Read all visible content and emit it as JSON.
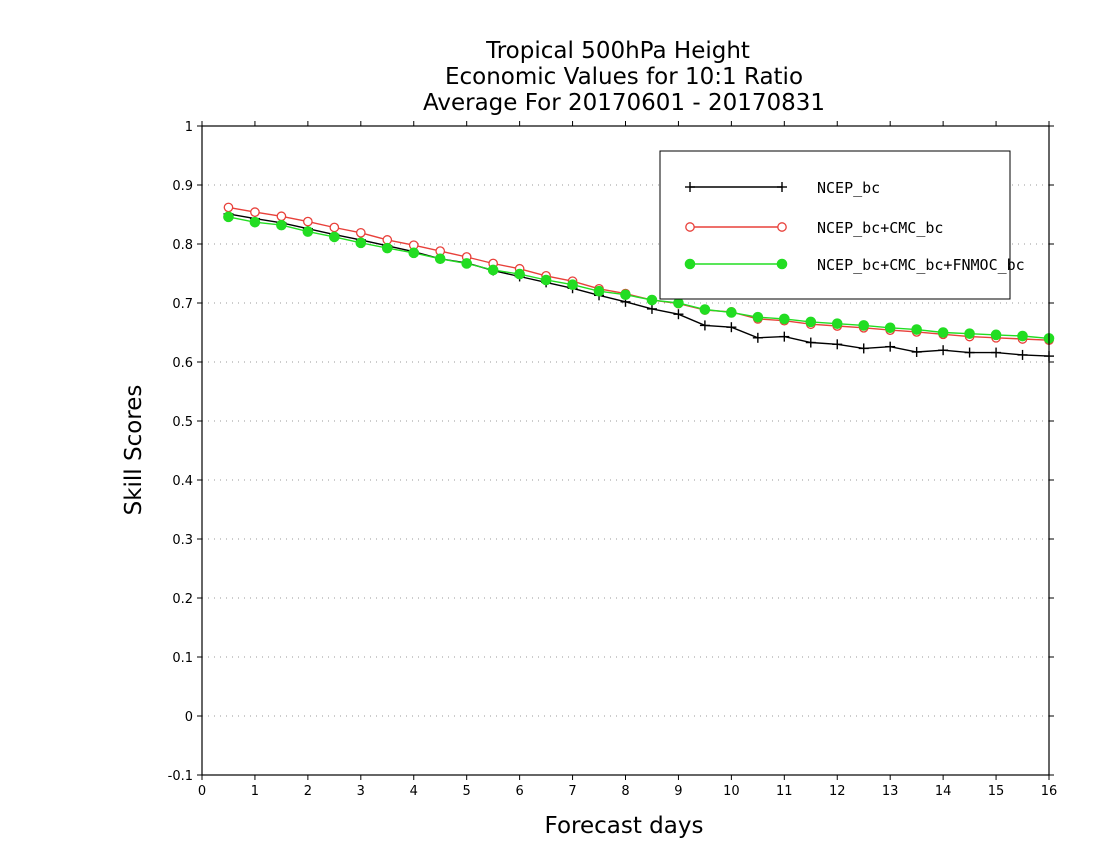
{
  "chart_data": {
    "type": "line",
    "title": [
      "Tropical 500hPa Height",
      "Economic Values for 10:1 Ratio",
      "Average For 20170601 - 20170831"
    ],
    "xlabel": "Forecast days",
    "ylabel": "Skill Scores",
    "xlim": [
      0,
      16
    ],
    "ylim": [
      -0.1,
      1
    ],
    "xticks": [
      "0",
      "1",
      "2",
      "3",
      "4",
      "5",
      "6",
      "7",
      "8",
      "9",
      "10",
      "11",
      "12",
      "13",
      "14",
      "15",
      "16"
    ],
    "yticks": [
      "-0.1",
      "0",
      "0.1",
      "0.2",
      "0.3",
      "0.4",
      "0.5",
      "0.6",
      "0.7",
      "0.8",
      "0.9",
      "1"
    ],
    "grid": true,
    "legend_position": "top-right",
    "x": [
      0.5,
      1,
      1.5,
      2,
      2.5,
      3,
      3.5,
      4,
      4.5,
      5,
      5.5,
      6,
      6.5,
      7,
      7.5,
      8,
      8.5,
      9,
      9.5,
      10,
      10.5,
      11,
      11.5,
      12,
      12.5,
      13,
      13.5,
      14,
      14.5,
      15,
      15.5,
      16
    ],
    "series": [
      {
        "name": "NCEP_bc",
        "color": "#000000",
        "marker": "plus",
        "values": [
          0.851,
          0.843,
          0.836,
          0.826,
          0.816,
          0.807,
          0.797,
          0.787,
          0.775,
          0.768,
          0.755,
          0.745,
          0.735,
          0.725,
          0.713,
          0.702,
          0.69,
          0.681,
          0.662,
          0.659,
          0.641,
          0.643,
          0.633,
          0.63,
          0.623,
          0.626,
          0.617,
          0.62,
          0.616,
          0.616,
          0.612,
          0.61
        ]
      },
      {
        "name": "NCEP_bc+CMC_bc",
        "color": "#e8403a",
        "marker": "open-circle",
        "values": [
          0.862,
          0.854,
          0.847,
          0.838,
          0.828,
          0.819,
          0.807,
          0.798,
          0.788,
          0.778,
          0.767,
          0.758,
          0.746,
          0.737,
          0.724,
          0.716,
          0.705,
          0.699,
          0.688,
          0.685,
          0.673,
          0.67,
          0.664,
          0.661,
          0.658,
          0.654,
          0.651,
          0.647,
          0.643,
          0.641,
          0.639,
          0.637
        ]
      },
      {
        "name": "NCEP_bc+CMC_bc+FNMOC_bc",
        "color": "#22dd22",
        "marker": "filled-circle",
        "values": [
          0.846,
          0.837,
          0.832,
          0.821,
          0.812,
          0.802,
          0.793,
          0.785,
          0.775,
          0.767,
          0.756,
          0.749,
          0.739,
          0.731,
          0.72,
          0.714,
          0.705,
          0.7,
          0.689,
          0.684,
          0.676,
          0.673,
          0.668,
          0.665,
          0.662,
          0.658,
          0.655,
          0.65,
          0.648,
          0.646,
          0.644,
          0.64
        ]
      }
    ]
  }
}
